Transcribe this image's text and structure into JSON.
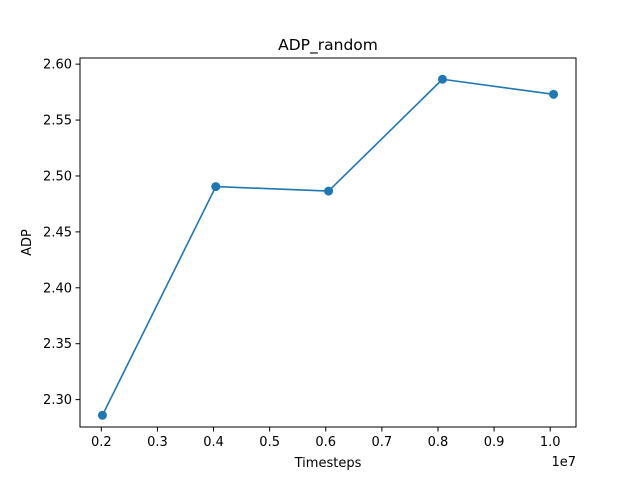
{
  "chart_data": {
    "type": "line",
    "title": "ADP_random",
    "xlabel": "Timesteps",
    "ylabel": "ADP",
    "x_offset_text": "1e7",
    "series": [
      {
        "color": "#1f77b4",
        "marker": "circle",
        "x": [
          2.02,
          4.04,
          6.05,
          8.08,
          10.06
        ],
        "y": [
          2.286,
          2.4905,
          2.4865,
          2.5865,
          2.573
        ]
      }
    ],
    "xlim": [
      1.62,
      10.46
    ],
    "ylim": [
      2.2755,
      2.6055
    ],
    "xticks": [
      2,
      3,
      4,
      5,
      6,
      7,
      8,
      9,
      10
    ],
    "xtick_labels": [
      "0.2",
      "0.3",
      "0.4",
      "0.5",
      "0.6",
      "0.7",
      "0.8",
      "0.9",
      "1.0"
    ],
    "yticks": [
      2.3,
      2.35,
      2.4,
      2.45,
      2.5,
      2.55,
      2.6
    ],
    "ytick_labels": [
      "2.30",
      "2.35",
      "2.40",
      "2.45",
      "2.50",
      "2.55",
      "2.60"
    ],
    "grid": false,
    "legend": "none"
  }
}
